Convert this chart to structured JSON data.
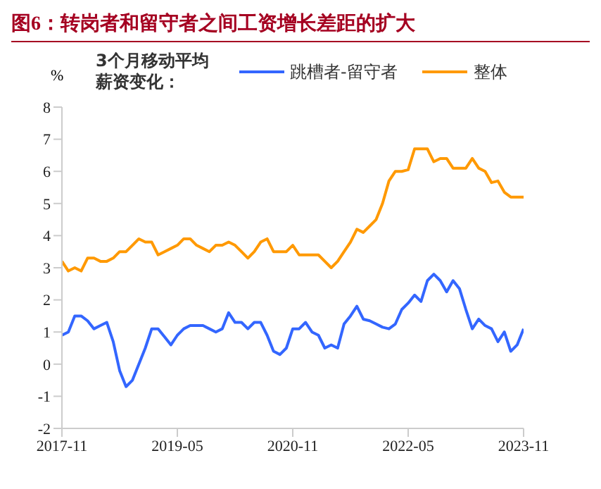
{
  "chart_data": {
    "type": "line",
    "title": "图6：转岗者和留守者之间工资增长差距的扩大",
    "ylabel": "%",
    "legend_title": "3个月移动平均薪资变化：",
    "legend": "top",
    "grid": false,
    "marker": "none",
    "line_style": "solid",
    "x": [
      "2017-11",
      "2017-12",
      "2018-01",
      "2018-02",
      "2018-03",
      "2018-04",
      "2018-05",
      "2018-06",
      "2018-07",
      "2018-08",
      "2018-09",
      "2018-10",
      "2018-11",
      "2018-12",
      "2019-01",
      "2019-02",
      "2019-03",
      "2019-04",
      "2019-05",
      "2019-06",
      "2019-07",
      "2019-08",
      "2019-09",
      "2019-10",
      "2019-11",
      "2019-12",
      "2020-01",
      "2020-02",
      "2020-03",
      "2020-04",
      "2020-05",
      "2020-06",
      "2020-07",
      "2020-08",
      "2020-09",
      "2020-10",
      "2020-11",
      "2020-12",
      "2021-01",
      "2021-02",
      "2021-03",
      "2021-04",
      "2021-05",
      "2021-06",
      "2021-07",
      "2021-08",
      "2021-09",
      "2021-10",
      "2021-11",
      "2021-12",
      "2022-01",
      "2022-02",
      "2022-03",
      "2022-04",
      "2022-05",
      "2022-06",
      "2022-07",
      "2022-08",
      "2022-09",
      "2022-10",
      "2022-11",
      "2022-12",
      "2023-01",
      "2023-02",
      "2023-03",
      "2023-04",
      "2023-05",
      "2023-06",
      "2023-07",
      "2023-08",
      "2023-09",
      "2023-10",
      "2023-11"
    ],
    "series": [
      {
        "name": "跳槽者-留守者",
        "color": "#3366ff",
        "values": [
          0.9,
          1.0,
          1.5,
          1.5,
          1.35,
          1.1,
          1.2,
          1.3,
          0.7,
          -0.2,
          -0.7,
          -0.5,
          0,
          0.5,
          1.1,
          1.1,
          0.85,
          0.6,
          0.9,
          1.1,
          1.2,
          1.2,
          1.2,
          1.1,
          1.0,
          1.1,
          1.6,
          1.3,
          1.3,
          1.1,
          1.3,
          1.3,
          0.9,
          0.4,
          0.3,
          0.5,
          1.1,
          1.1,
          1.3,
          1.0,
          0.9,
          0.5,
          0.6,
          0.5,
          1.25,
          1.5,
          1.8,
          1.4,
          1.35,
          1.25,
          1.15,
          1.1,
          1.25,
          1.7,
          1.9,
          2.15,
          1.95,
          2.6,
          2.8,
          2.6,
          2.25,
          2.6,
          2.35,
          1.7,
          1.1,
          1.4,
          1.2,
          1.1,
          0.7,
          1.0,
          0.4,
          0.6,
          1.1
        ]
      },
      {
        "name": "整体",
        "color": "#ff9900",
        "values": [
          3.2,
          2.9,
          3.0,
          2.9,
          3.3,
          3.3,
          3.2,
          3.2,
          3.3,
          3.5,
          3.5,
          3.7,
          3.9,
          3.8,
          3.8,
          3.4,
          3.5,
          3.6,
          3.7,
          3.9,
          3.9,
          3.7,
          3.6,
          3.5,
          3.7,
          3.7,
          3.8,
          3.7,
          3.5,
          3.3,
          3.5,
          3.8,
          3.9,
          3.5,
          3.5,
          3.5,
          3.7,
          3.4,
          3.4,
          3.4,
          3.4,
          3.2,
          3.0,
          3.2,
          3.5,
          3.8,
          4.2,
          4.1,
          4.3,
          4.5,
          5.0,
          5.7,
          6.0,
          6.0,
          6.05,
          6.7,
          6.7,
          6.7,
          6.3,
          6.4,
          6.4,
          6.1,
          6.1,
          6.1,
          6.4,
          6.1,
          6.0,
          5.65,
          5.7,
          5.35,
          5.2,
          5.2,
          5.2
        ]
      }
    ],
    "xlim": [
      "2017-11",
      "2023-11"
    ],
    "xticks": [
      "2017-11",
      "2019-05",
      "2020-11",
      "2022-05",
      "2023-11"
    ],
    "ylim": [
      -2,
      8
    ],
    "yticks": [
      -2,
      -1,
      0,
      1,
      2,
      3,
      4,
      5,
      6,
      7,
      8
    ]
  }
}
